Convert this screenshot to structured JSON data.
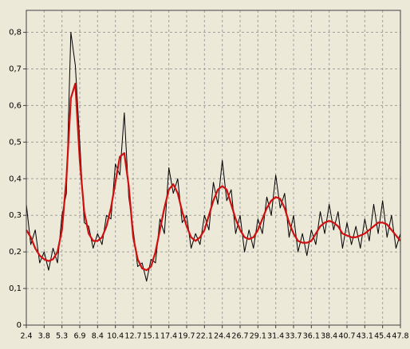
{
  "chart_data": {
    "type": "line",
    "categories": [
      "2.4",
      null,
      null,
      null,
      "3.8",
      null,
      null,
      null,
      "5.3",
      null,
      null,
      null,
      "6.9",
      null,
      null,
      null,
      "8.4",
      null,
      null,
      null,
      "10.4",
      null,
      null,
      null,
      "12.7",
      null,
      null,
      null,
      "15.1",
      null,
      null,
      null,
      "17.4",
      null,
      null,
      null,
      "19.7",
      null,
      null,
      null,
      "22.1",
      null,
      null,
      null,
      "24.4",
      null,
      null,
      null,
      "26.7",
      null,
      null,
      null,
      "29.1",
      null,
      null,
      null,
      "31.4",
      null,
      null,
      null,
      "33.7",
      null,
      null,
      null,
      "36.1",
      null,
      null,
      null,
      "38.4",
      null,
      null,
      null,
      "40.7",
      null,
      null,
      null,
      "43.1",
      null,
      null,
      null,
      "45.4",
      null,
      null,
      null,
      "47.8"
    ],
    "series": [
      {
        "color": "#000000",
        "values": [
          0.33,
          0.22,
          0.26,
          0.17,
          0.2,
          0.15,
          0.21,
          0.17,
          0.3,
          0.36,
          0.8,
          0.71,
          0.5,
          0.28,
          0.27,
          0.21,
          0.25,
          0.22,
          0.3,
          0.29,
          0.44,
          0.41,
          0.58,
          0.35,
          0.26,
          0.16,
          0.17,
          0.12,
          0.18,
          0.17,
          0.29,
          0.25,
          0.43,
          0.36,
          0.4,
          0.28,
          0.3,
          0.21,
          0.25,
          0.22,
          0.3,
          0.26,
          0.39,
          0.33,
          0.45,
          0.34,
          0.37,
          0.25,
          0.3,
          0.2,
          0.26,
          0.21,
          0.29,
          0.25,
          0.35,
          0.3,
          0.41,
          0.32,
          0.36,
          0.24,
          0.3,
          0.2,
          0.25,
          0.19,
          0.26,
          0.22,
          0.31,
          0.25,
          0.33,
          0.26,
          0.31,
          0.21,
          0.28,
          0.22,
          0.27,
          0.21,
          0.29,
          0.23,
          0.33,
          0.25,
          0.34,
          0.24,
          0.3,
          0.21,
          0.25
        ]
      },
      {
        "color": "#d01010",
        "values": [
          0.26,
          0.24,
          0.21,
          0.19,
          0.18,
          0.175,
          0.18,
          0.2,
          0.26,
          0.4,
          0.62,
          0.66,
          0.45,
          0.31,
          0.25,
          0.23,
          0.23,
          0.24,
          0.27,
          0.32,
          0.39,
          0.46,
          0.47,
          0.38,
          0.24,
          0.18,
          0.155,
          0.15,
          0.16,
          0.2,
          0.26,
          0.32,
          0.37,
          0.385,
          0.36,
          0.31,
          0.27,
          0.24,
          0.23,
          0.24,
          0.26,
          0.3,
          0.34,
          0.37,
          0.38,
          0.37,
          0.33,
          0.29,
          0.26,
          0.24,
          0.235,
          0.24,
          0.26,
          0.29,
          0.32,
          0.34,
          0.35,
          0.345,
          0.32,
          0.28,
          0.25,
          0.23,
          0.225,
          0.225,
          0.23,
          0.25,
          0.27,
          0.28,
          0.285,
          0.28,
          0.27,
          0.25,
          0.245,
          0.24,
          0.24,
          0.245,
          0.25,
          0.26,
          0.27,
          0.28,
          0.28,
          0.275,
          0.26,
          0.245,
          0.23
        ]
      }
    ],
    "ylim": [
      0,
      0.86
    ],
    "yticks": [
      0,
      {
        "value": 0.1,
        "label": "0,1"
      },
      {
        "value": 0.2,
        "label": "0,2"
      },
      {
        "value": 0.3,
        "label": "0,3"
      },
      {
        "value": 0.4,
        "label": "0,4"
      },
      {
        "value": 0.5,
        "label": "0,5"
      },
      {
        "value": 0.6,
        "label": "0,6"
      },
      {
        "value": 0.7,
        "label": "0,7"
      },
      {
        "value": 0.8,
        "label": "0,8"
      }
    ],
    "grid": true
  }
}
